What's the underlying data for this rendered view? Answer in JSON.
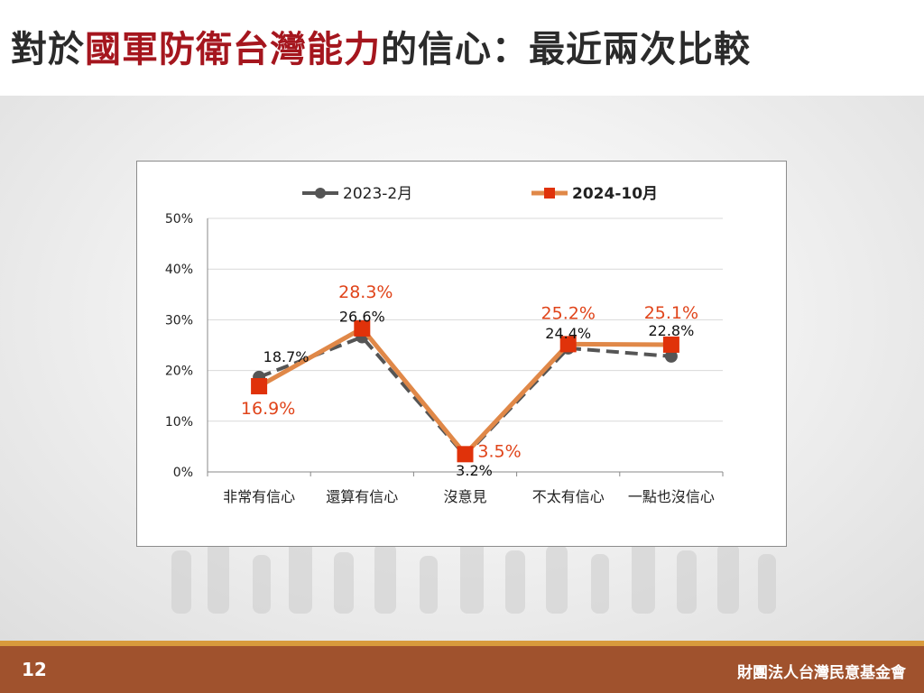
{
  "page": {
    "title_prefix": "對於",
    "title_accent": "國軍防衛台灣能力",
    "title_suffix": "的信心：最近兩次比較",
    "page_number": "12",
    "organization": "財團法人台灣民意基金會"
  },
  "colors": {
    "accent": "#a5161e",
    "series_2023": "#555555",
    "series_2024_line": "#e08848",
    "series_2024_marker": "#e0320a",
    "label_2024": "#e0441a",
    "footer": "#a0522d"
  },
  "chart_data": {
    "type": "line",
    "categories": [
      "非常有信心",
      "還算有信心",
      "沒意見",
      "不太有信心",
      "一點也沒信心"
    ],
    "ylim": [
      0,
      50
    ],
    "yticks": [
      "0%",
      "10%",
      "20%",
      "30%",
      "40%",
      "50%"
    ],
    "ytick_values": [
      0,
      10,
      20,
      30,
      40,
      50
    ],
    "grid": true,
    "legend_position": "top",
    "series": [
      {
        "name": "2023-2月",
        "values": [
          18.7,
          26.6,
          3.2,
          24.4,
          22.8
        ],
        "labels": [
          "18.7%",
          "26.6%",
          "3.2%",
          "24.4%",
          "22.8%"
        ],
        "style": "dashed",
        "marker": "circle"
      },
      {
        "name": "2024-10月",
        "values": [
          16.9,
          28.3,
          3.5,
          25.2,
          25.1
        ],
        "labels": [
          "16.9%",
          "28.3%",
          "3.5%",
          "25.2%",
          "25.1%"
        ],
        "style": "solid",
        "marker": "square"
      }
    ]
  }
}
